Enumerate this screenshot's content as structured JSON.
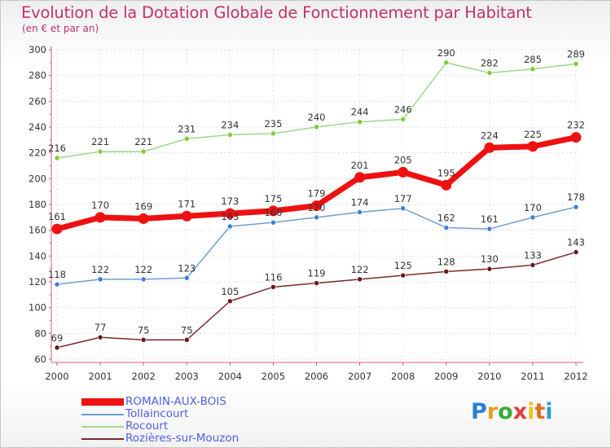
{
  "title": "Evolution de la Dotation Globale de Fonctionnement par Habitant",
  "subtitle": "(en € et par an)",
  "logo_text": "Proxiti",
  "chart_data": {
    "type": "line",
    "title": "Evolution de la Dotation Globale de Fonctionnement par Habitant",
    "subtitle": "(en € et par an)",
    "xlabel": "",
    "ylabel": "",
    "x": [
      2000,
      2001,
      2002,
      2003,
      2004,
      2005,
      2006,
      2007,
      2008,
      2009,
      2010,
      2011,
      2012
    ],
    "ylim": [
      60,
      300
    ],
    "yticks": [
      60,
      80,
      100,
      120,
      140,
      160,
      180,
      200,
      220,
      240,
      260,
      280,
      300
    ],
    "grid": true,
    "legend_position": "bottom-left",
    "series": [
      {
        "name": "ROMAIN-AUX-BOIS",
        "color": "#ee1111",
        "marker": "#ee1111",
        "width": 7,
        "dot": 6.5,
        "values": [
          161,
          170,
          169,
          171,
          173,
          175,
          179,
          201,
          205,
          195,
          224,
          225,
          232
        ]
      },
      {
        "name": "Tollaincourt",
        "color": "#6f9fd0",
        "marker": "#3d7fd0",
        "width": 1.5,
        "dot": 3,
        "values": [
          118,
          122,
          122,
          123,
          163,
          166,
          170,
          174,
          177,
          162,
          161,
          170,
          178
        ]
      },
      {
        "name": "Rocourt",
        "color": "#9ed88a",
        "marker": "#7acc3a",
        "width": 1.5,
        "dot": 3,
        "values": [
          216,
          221,
          221,
          231,
          234,
          235,
          240,
          244,
          246,
          290,
          282,
          285,
          289
        ]
      },
      {
        "name": "Rozières-sur-Mouzon",
        "color": "#7a2a2a",
        "marker": "#6a1818",
        "width": 1.5,
        "dot": 3,
        "values": [
          69,
          77,
          75,
          75,
          105,
          116,
          119,
          122,
          125,
          128,
          130,
          133,
          143
        ]
      }
    ]
  }
}
